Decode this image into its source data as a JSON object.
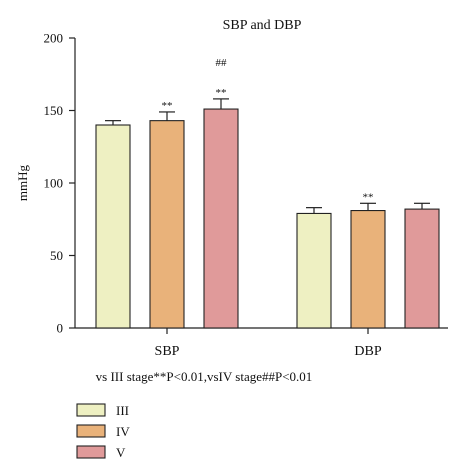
{
  "chart_data": {
    "type": "bar",
    "title": "SBP and DBP",
    "ylabel": "mmHg",
    "xlabel": "",
    "ylim": [
      0,
      200
    ],
    "yticks": [
      0,
      50,
      100,
      150,
      200
    ],
    "categories": [
      "SBP",
      "DBP"
    ],
    "series": [
      {
        "name": "III",
        "values": [
          140,
          79
        ],
        "errors": [
          3,
          4
        ],
        "color": "#eef0c2",
        "annotations": [
          "",
          ""
        ]
      },
      {
        "name": "IV",
        "values": [
          143,
          81
        ],
        "errors": [
          6,
          5
        ],
        "color": "#e9b27a",
        "annotations": [
          "**",
          "**"
        ]
      },
      {
        "name": "V",
        "values": [
          151,
          82
        ],
        "errors": [
          7,
          4
        ],
        "color": "#e09a9a",
        "annotations": [
          "##\n**",
          ""
        ]
      }
    ],
    "footnote": "vs III stage**P<0.01,vsIV stage##P<0.01",
    "legend_position": "bottom-left",
    "grid": false,
    "colors": {
      "axis": "#222222",
      "bar_stroke": "#222222"
    }
  }
}
